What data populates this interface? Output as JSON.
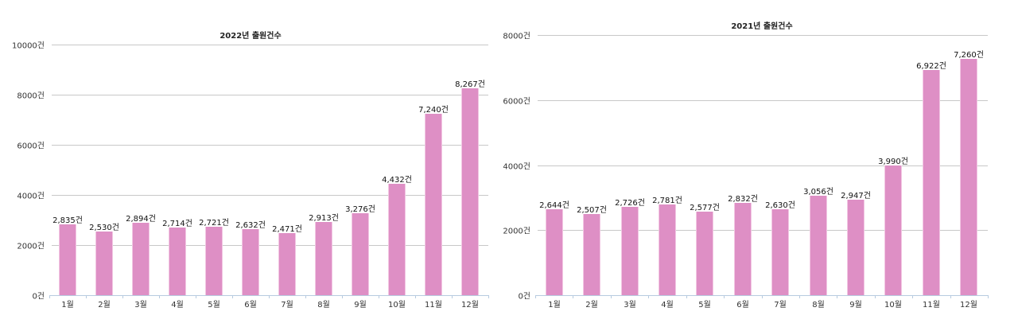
{
  "chart_data": [
    {
      "type": "bar",
      "title": "2022년 출원건수",
      "xlabel": "",
      "ylabel": "",
      "ylim": [
        0,
        10000
      ],
      "yticks": [
        "0건",
        "2000건",
        "4000건",
        "6000건",
        "8000건",
        "10000건"
      ],
      "categories": [
        "1월",
        "2월",
        "3월",
        "4월",
        "5월",
        "6월",
        "7월",
        "8월",
        "9월",
        "10월",
        "11월",
        "12월"
      ],
      "values": [
        2835,
        2530,
        2894,
        2714,
        2721,
        2632,
        2471,
        2913,
        3276,
        4432,
        7240,
        8267
      ],
      "value_labels": [
        "2,835건",
        "2,530건",
        "2,894건",
        "2,714건",
        "2,721건",
        "2,632건",
        "2,471건",
        "2,913건",
        "3,276건",
        "4,432건",
        "7,240건",
        "8,267건"
      ],
      "grid": true,
      "bar_color": "#de8fc5"
    },
    {
      "type": "bar",
      "title": "2021년 출원건수",
      "xlabel": "",
      "ylabel": "",
      "ylim": [
        0,
        8000
      ],
      "yticks": [
        "0건",
        "2000건",
        "4000건",
        "6000건",
        "8000건"
      ],
      "categories": [
        "1월",
        "2월",
        "3월",
        "4월",
        "5월",
        "6월",
        "7월",
        "8월",
        "9월",
        "10월",
        "11월",
        "12월"
      ],
      "values": [
        2644,
        2507,
        2726,
        2781,
        2577,
        2832,
        2630,
        3056,
        2947,
        3990,
        6922,
        7260
      ],
      "value_labels": [
        "2,644건",
        "2,507건",
        "2,726건",
        "2,781건",
        "2,577건",
        "2,832건",
        "2,630건",
        "3,056건",
        "2,947건",
        "3,990건",
        "6,922건",
        "7,260건"
      ],
      "grid": true,
      "bar_color": "#de8fc5"
    }
  ]
}
